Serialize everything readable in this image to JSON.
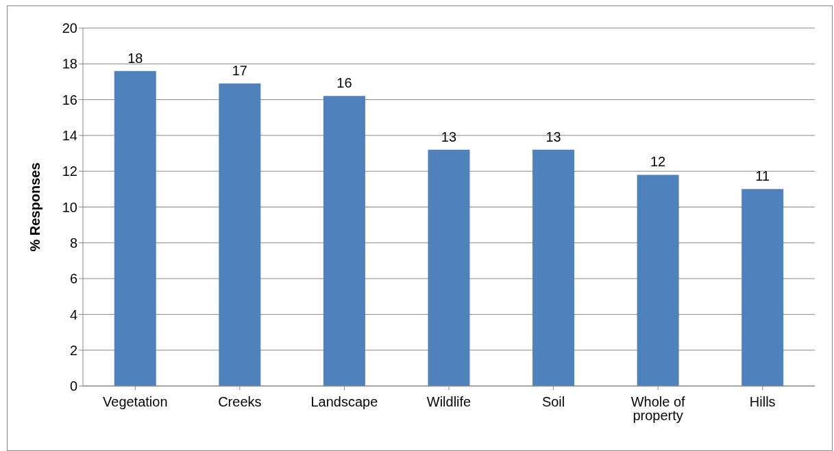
{
  "chart_data": {
    "type": "bar",
    "ylabel": "% Responses",
    "categories": [
      "Vegetation",
      "Creeks",
      "Landscape",
      "Wildlife",
      "Soil",
      "Whole of property",
      "Hills"
    ],
    "values": [
      17.6,
      16.9,
      16.2,
      13.2,
      13.2,
      11.8,
      11.0
    ],
    "value_labels": [
      "18",
      "17",
      "16",
      "13",
      "13",
      "12",
      "11"
    ],
    "color": "#4f81bd",
    "ylim": [
      0,
      20
    ],
    "yticks": [
      0,
      2,
      4,
      6,
      8,
      10,
      12,
      14,
      16,
      18,
      20
    ],
    "grid": "y"
  }
}
